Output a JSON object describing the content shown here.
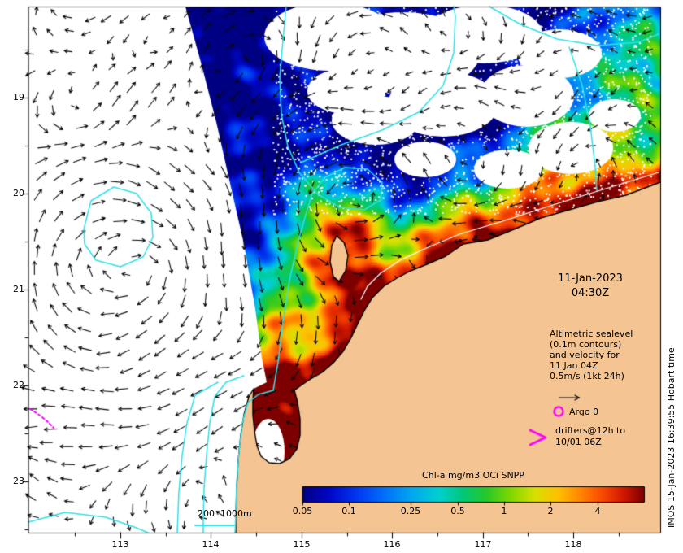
{
  "axes": {
    "lat_ticks": [
      "19",
      "20",
      "21",
      "22",
      "23"
    ],
    "lon_ticks": [
      "113",
      "114",
      "115",
      "116",
      "117",
      "118"
    ]
  },
  "annotations": {
    "datetime": {
      "line1": "11-Jan-2023",
      "line2": "04:30Z"
    },
    "altimetric_note": {
      "line1": "Altimetric sealevel",
      "line2": "(0.1m contours)",
      "line3": "and velocity for",
      "line4": "11 Jan 04Z",
      "line5": "0.5m/s (1kt 24h)"
    },
    "argo_label": "Argo 0",
    "drifters": {
      "line1": "drifters@12h to",
      "line2": "10/01 06Z"
    },
    "depth_scale_label": "200  1000m",
    "credit_vertical": "IMOS 15-Jan-2023 16:39:55 Hobart time"
  },
  "colorbar": {
    "title": "Chl-a mg/m3 OCi SNPP",
    "tick_labels": [
      "0.05",
      "0.1",
      "0.25",
      "0.5",
      "1",
      "2",
      "4"
    ],
    "tick_values": [
      0.05,
      0.1,
      0.25,
      0.5,
      1,
      2,
      4
    ],
    "range": [
      0.05,
      8
    ],
    "gradient_stops": [
      [
        0.0,
        "#000082"
      ],
      [
        0.08,
        "#0008c8"
      ],
      [
        0.16,
        "#0038f0"
      ],
      [
        0.24,
        "#0070f8"
      ],
      [
        0.32,
        "#00a8f0"
      ],
      [
        0.4,
        "#00d0d0"
      ],
      [
        0.47,
        "#00c878"
      ],
      [
        0.54,
        "#28c828"
      ],
      [
        0.61,
        "#80d800"
      ],
      [
        0.68,
        "#d8e000"
      ],
      [
        0.75,
        "#ffc000"
      ],
      [
        0.82,
        "#ff8000"
      ],
      [
        0.88,
        "#f84800"
      ],
      [
        0.94,
        "#d01800"
      ],
      [
        1.0,
        "#7c0000"
      ]
    ]
  },
  "colors": {
    "land": "#f4c493",
    "ocean_nodata": "#ffffff",
    "contour_cyan": "#30e0e8",
    "contour_white": "#ffffff",
    "coastline": "#000000",
    "arrows": "#0a0a0a",
    "magenta": "#ff00ff",
    "frame": "#000000"
  },
  "chart_data": {
    "type": "heatmap",
    "title": "Chl-a mg/m3 OCi SNPP",
    "x_ticks": [
      113,
      114,
      115,
      116,
      117,
      118
    ],
    "y_ticks": [
      19,
      20,
      21,
      22,
      23
    ],
    "colorbar_scale": "log",
    "colorbar_ticks": [
      0.05,
      0.1,
      0.25,
      0.5,
      1,
      2,
      4
    ],
    "overlays": [
      "altimetric sealevel contours (0.1m)",
      "velocity arrows (0.5m/s scale)",
      "Argo 0",
      "drifters@12h to 10/01 06Z",
      "200/1000m depth contours"
    ]
  }
}
